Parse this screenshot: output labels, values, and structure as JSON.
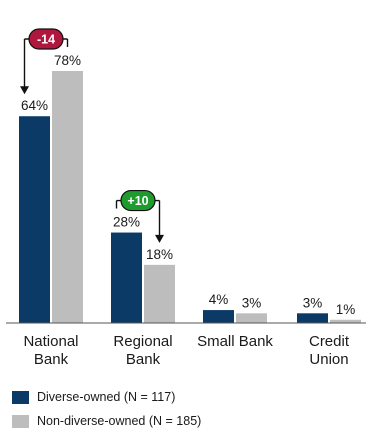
{
  "chart_data": {
    "type": "bar",
    "categories": [
      [
        "National",
        "Bank"
      ],
      [
        "Regional",
        "Bank"
      ],
      [
        "Small Bank"
      ],
      [
        "Credit",
        "Union"
      ]
    ],
    "series": [
      {
        "name": "Diverse-owned (N = 117)",
        "values": [
          64,
          28,
          4,
          3
        ],
        "labels": [
          "64%",
          "28%",
          "4%",
          "3%"
        ],
        "color": "#0b3a66"
      },
      {
        "name": "Non-diverse-owned (N = 185)",
        "values": [
          78,
          18,
          3,
          1
        ],
        "labels": [
          "78%",
          "18%",
          "3%",
          "1%"
        ],
        "color": "#bdbdbd"
      }
    ],
    "ylim": [
      0,
      100
    ],
    "grid": false,
    "legend_position": "bottom-left",
    "annotations": [
      {
        "category_index": 0,
        "text": "-14",
        "color": "#b0173e"
      },
      {
        "category_index": 1,
        "text": "+10",
        "color": "#1f9a2f"
      }
    ]
  }
}
